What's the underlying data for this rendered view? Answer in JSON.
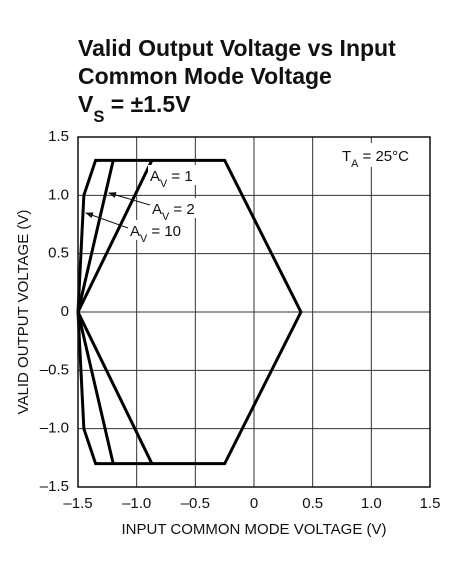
{
  "chart_data": {
    "type": "line",
    "title": [
      "Valid Output Voltage vs Input",
      "Common Mode Voltage"
    ],
    "subtitle": [
      "V",
      "S",
      " = ±1.5V"
    ],
    "x_label": "INPUT COMMON MODE VOLTAGE (V)",
    "y_label": "VALID OUTPUT VOLTAGE (V)",
    "xlim": [
      -1.5,
      1.5
    ],
    "ylim": [
      -1.5,
      1.5
    ],
    "xticks": [
      {
        "value": -1.5,
        "label": "–1.5"
      },
      {
        "value": -1,
        "label": "–1.0"
      },
      {
        "value": -0.5,
        "label": "–0.5"
      },
      0,
      0.5,
      {
        "value": 1,
        "label": "1.0"
      },
      1.5
    ],
    "yticks": [
      {
        "value": -1.5,
        "label": "–1.5"
      },
      {
        "value": -1,
        "label": "–1.0"
      },
      {
        "value": -0.5,
        "label": "–0.5"
      },
      0,
      0.5,
      {
        "value": 1,
        "label": "1.0"
      },
      1.5
    ],
    "grid": true,
    "series": [
      {
        "color": "#000000",
        "x": [
          -1.5,
          -1.45,
          -1.35,
          -0.25,
          0.4,
          -0.25,
          -1.35,
          -1.45,
          -1.5
        ],
        "y": [
          0,
          1,
          1.3,
          1.3,
          0,
          -1.3,
          -1.3,
          -1,
          0
        ]
      },
      {
        "color": "#000000",
        "x": [
          -1.2,
          -1.5,
          -1.2
        ],
        "y": [
          1.3,
          0,
          -1.3
        ]
      },
      {
        "color": "#000000",
        "x": [
          -0.87,
          -1.5,
          -0.87
        ],
        "y": [
          1.3,
          0,
          -1.3
        ]
      }
    ],
    "annotations": [
      [
        "T",
        "A",
        " = 25°C"
      ],
      [
        "A",
        "V",
        " = 1"
      ],
      [
        "A",
        "V",
        " = 2"
      ],
      [
        "A",
        "V",
        " = 10"
      ]
    ]
  }
}
